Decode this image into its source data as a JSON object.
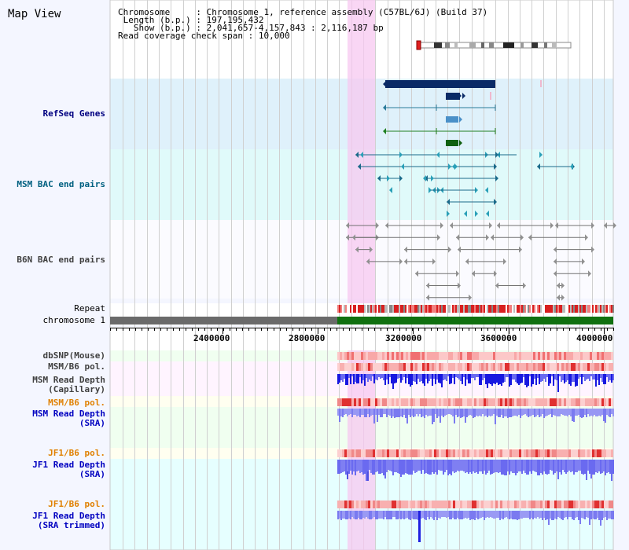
{
  "title": "Map View",
  "info": {
    "chromosome_key": "Chromosome",
    "chromosome_value": "Chromosome 1, reference assembly (C57BL/6J) (Build 37)",
    "length_key": "Length (b.p.)",
    "length_value": "197,195,432",
    "show_key": "Show (b.p.)",
    "show_value": "2,041,657-4,157,843 : 2,116,187 bp",
    "span_key": "Read coverage check span",
    "span_value": "10,000"
  },
  "tracks": {
    "refseq_genes": "RefSeq Genes",
    "msm_bac": "MSM BAC end pairs",
    "b6n_bac": "B6N BAC end pairs",
    "repeat": "Repeat",
    "chromosome": "chromosome 1",
    "dbsnp": "dbSNP(Mouse)",
    "msm_b6_pol_1": "MSM/B6 pol.",
    "msm_read_depth_cap_1": "MSM Read Depth",
    "msm_read_depth_cap_2": "(Capillary)",
    "msm_b6_pol_2": "MSM/B6 pol.",
    "msm_read_depth_sra_1": "MSM Read Depth",
    "msm_read_depth_sra_2": "(SRA)",
    "jf1_b6_pol_1": "JF1/B6 pol.",
    "jf1_read_depth_sra_1": "JF1 Read Depth",
    "jf1_read_depth_sra_2": "(SRA)",
    "jf1_b6_pol_2": "JF1/B6 pol.",
    "jf1_read_depth_trim_1": "JF1 Read Depth",
    "jf1_read_depth_trim_2": "(SRA trimmed)"
  },
  "axis_ticks": [
    "2400000",
    "2800000",
    "3200000",
    "3600000",
    "4000000"
  ],
  "colors": {
    "refseq": "#000080",
    "msm_bac": "#006080",
    "b6n_bac": "#404040",
    "pol_orange": "#e08000",
    "read_depth_blue": "#0000c0"
  }
}
